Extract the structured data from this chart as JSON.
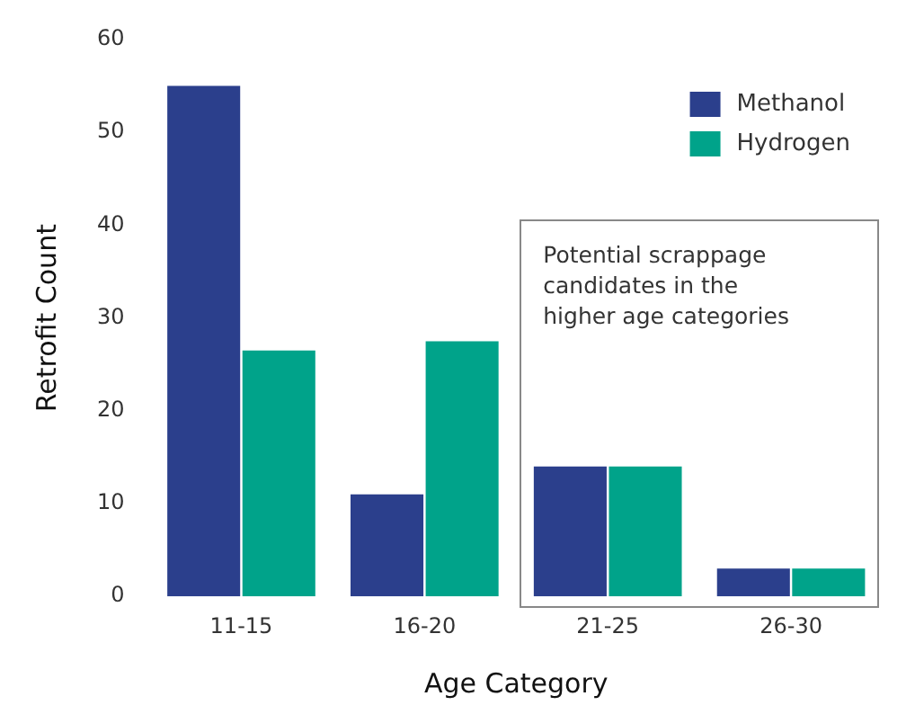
{
  "chart_data": {
    "type": "bar",
    "xlabel": "Age Category",
    "ylabel": "Retrofit Count",
    "categories": [
      "11-15",
      "16-20",
      "21-25",
      "26-30"
    ],
    "series": [
      {
        "name": "Methanol",
        "color": "#2b3f8c",
        "values": [
          55,
          11,
          14,
          3
        ]
      },
      {
        "name": "Hydrogen",
        "color": "#00a38a",
        "values": [
          26.5,
          27.5,
          14,
          3
        ]
      }
    ],
    "ylim": [
      0,
      60
    ],
    "yticks": [
      0,
      10,
      20,
      30,
      40,
      50,
      60
    ],
    "grid": false,
    "legend": "top right",
    "annotations": [
      "Potential scrappage candidates in the higher age categories"
    ]
  }
}
